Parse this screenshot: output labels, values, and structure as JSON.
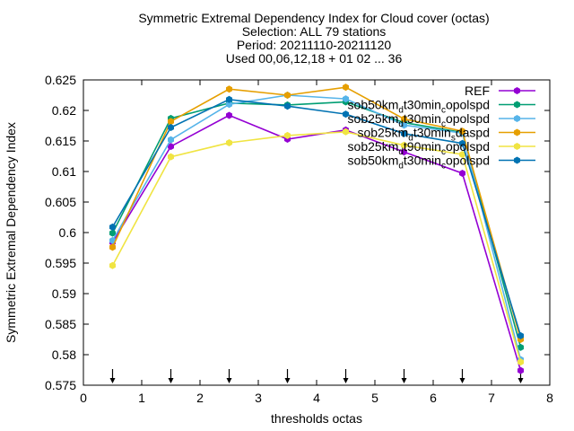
{
  "chart_data": {
    "type": "line",
    "title_lines": [
      "Symmetric Extremal Dependency Index  for Cloud cover (octas)",
      "Selection: ALL     79 stations",
      "Period: 20211110-20211120",
      "Used 00,06,12,18 + 01 02 ... 36"
    ],
    "xlabel": "thresholds octas",
    "ylabel": "Symmetric Extremal Dependency Index",
    "xlim": [
      0,
      8
    ],
    "ylim": [
      0.575,
      0.625
    ],
    "xticks": [
      "0",
      "1",
      "2",
      "3",
      "4",
      "5",
      "6",
      "7",
      "8"
    ],
    "yticks": [
      "0.575",
      "0.58",
      "0.585",
      "0.59",
      "0.595",
      "0.6",
      "0.605",
      "0.61",
      "0.615",
      "0.62",
      "0.625"
    ],
    "grid": false,
    "legend_position": "top-right",
    "x": [
      0.5,
      1.5,
      2.5,
      3.5,
      4.5,
      5.5,
      6.5,
      7.5
    ],
    "series": [
      {
        "name": "REF",
        "color": "#9400d3",
        "values": [
          0.5984,
          0.6141,
          0.6192,
          0.6153,
          0.6168,
          0.6132,
          0.6097,
          0.5774
        ]
      },
      {
        "name": "sob50km_dt30min_copolspd",
        "color": "#009e73",
        "values": [
          0.5999,
          0.6187,
          0.6212,
          0.6209,
          0.6214,
          0.618,
          0.6164,
          0.5812
        ]
      },
      {
        "name": "sob25km_dt30min_copolspd",
        "color": "#56b4e9",
        "values": [
          0.5987,
          0.6152,
          0.621,
          0.6225,
          0.6219,
          0.6176,
          0.6163,
          0.5792
        ]
      },
      {
        "name": "sob25km_dt30min_sdaspd",
        "color": "#e69f00",
        "values": [
          0.5976,
          0.6182,
          0.6235,
          0.6225,
          0.6238,
          0.6186,
          0.6166,
          0.5825
        ]
      },
      {
        "name": "sob25km_dt90min_copolspd",
        "color": "#f0e442",
        "values": [
          0.5946,
          0.6124,
          0.6147,
          0.6159,
          0.6165,
          0.6143,
          0.6128,
          0.5788
        ]
      },
      {
        "name": "sob50km_dt30min_copolspd",
        "color": "#0072b2",
        "values": [
          0.6009,
          0.6172,
          0.6218,
          0.6207,
          0.6194,
          0.6162,
          0.6146,
          0.5831
        ]
      }
    ],
    "legend_entries": [
      {
        "base": "REF",
        "sub": "",
        "tail": ""
      },
      {
        "base": "sob50km",
        "sub": "d",
        "tail": "t30min",
        "sub2": "c",
        "tail2": "opolspd"
      },
      {
        "base": "sob25km",
        "sub": "d",
        "tail": "t30min",
        "sub2": "c",
        "tail2": "opolspd"
      },
      {
        "base": "sob25km",
        "sub": "d",
        "tail": "t30min",
        "sub2": "s",
        "tail2": "daspd"
      },
      {
        "base": "sob25km",
        "sub": "d",
        "tail": "t90min",
        "sub2": "c",
        "tail2": "opolspd"
      },
      {
        "base": "sob50km",
        "sub": "d",
        "tail": "t30min",
        "sub2": "c",
        "tail2": "opolspd"
      }
    ],
    "arrow_markers_x": [
      0.5,
      1.5,
      2.5,
      3.5,
      4.5,
      5.5,
      6.5,
      7.5
    ]
  }
}
